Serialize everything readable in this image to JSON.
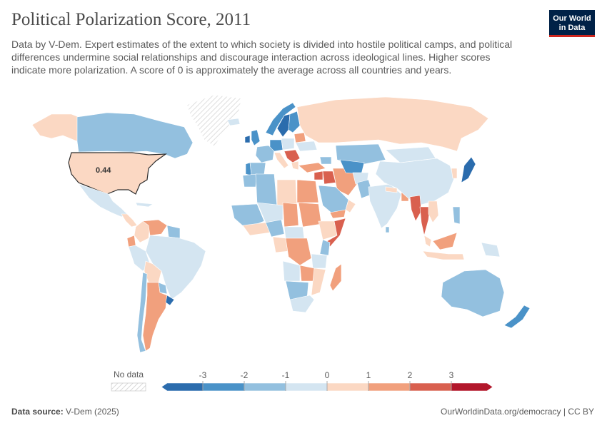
{
  "header": {
    "title": "Political Polarization Score, 2011",
    "subtitle": "Data by V-Dem. Expert estimates of the extent to which society is divided into hostile political camps, and political differences undermine social relationships and discourage interaction across ideological lines. Higher scores indicate more polarization. A score of 0 is approximately the average across all countries and years."
  },
  "logo": {
    "line1": "Our World",
    "line2": "in Data",
    "bg": "#002147",
    "accent": "#ce261e"
  },
  "map": {
    "highlight": {
      "region": "United States",
      "value_label": "0.44"
    }
  },
  "legend": {
    "no_data_label": "No data",
    "ticks": [
      "-3",
      "-2",
      "-1",
      "0",
      "1",
      "2",
      "3"
    ],
    "colors": [
      "#2b6cad",
      "#4a92c8",
      "#93c0df",
      "#d4e5f1",
      "#fbd8c3",
      "#f1a07d",
      "#d9604f",
      "#b2172b"
    ]
  },
  "footer": {
    "source_label": "Data source:",
    "source_value": "V-Dem (2025)",
    "link_text": "OurWorldinData.org/democracy",
    "license": "| CC BY"
  }
}
